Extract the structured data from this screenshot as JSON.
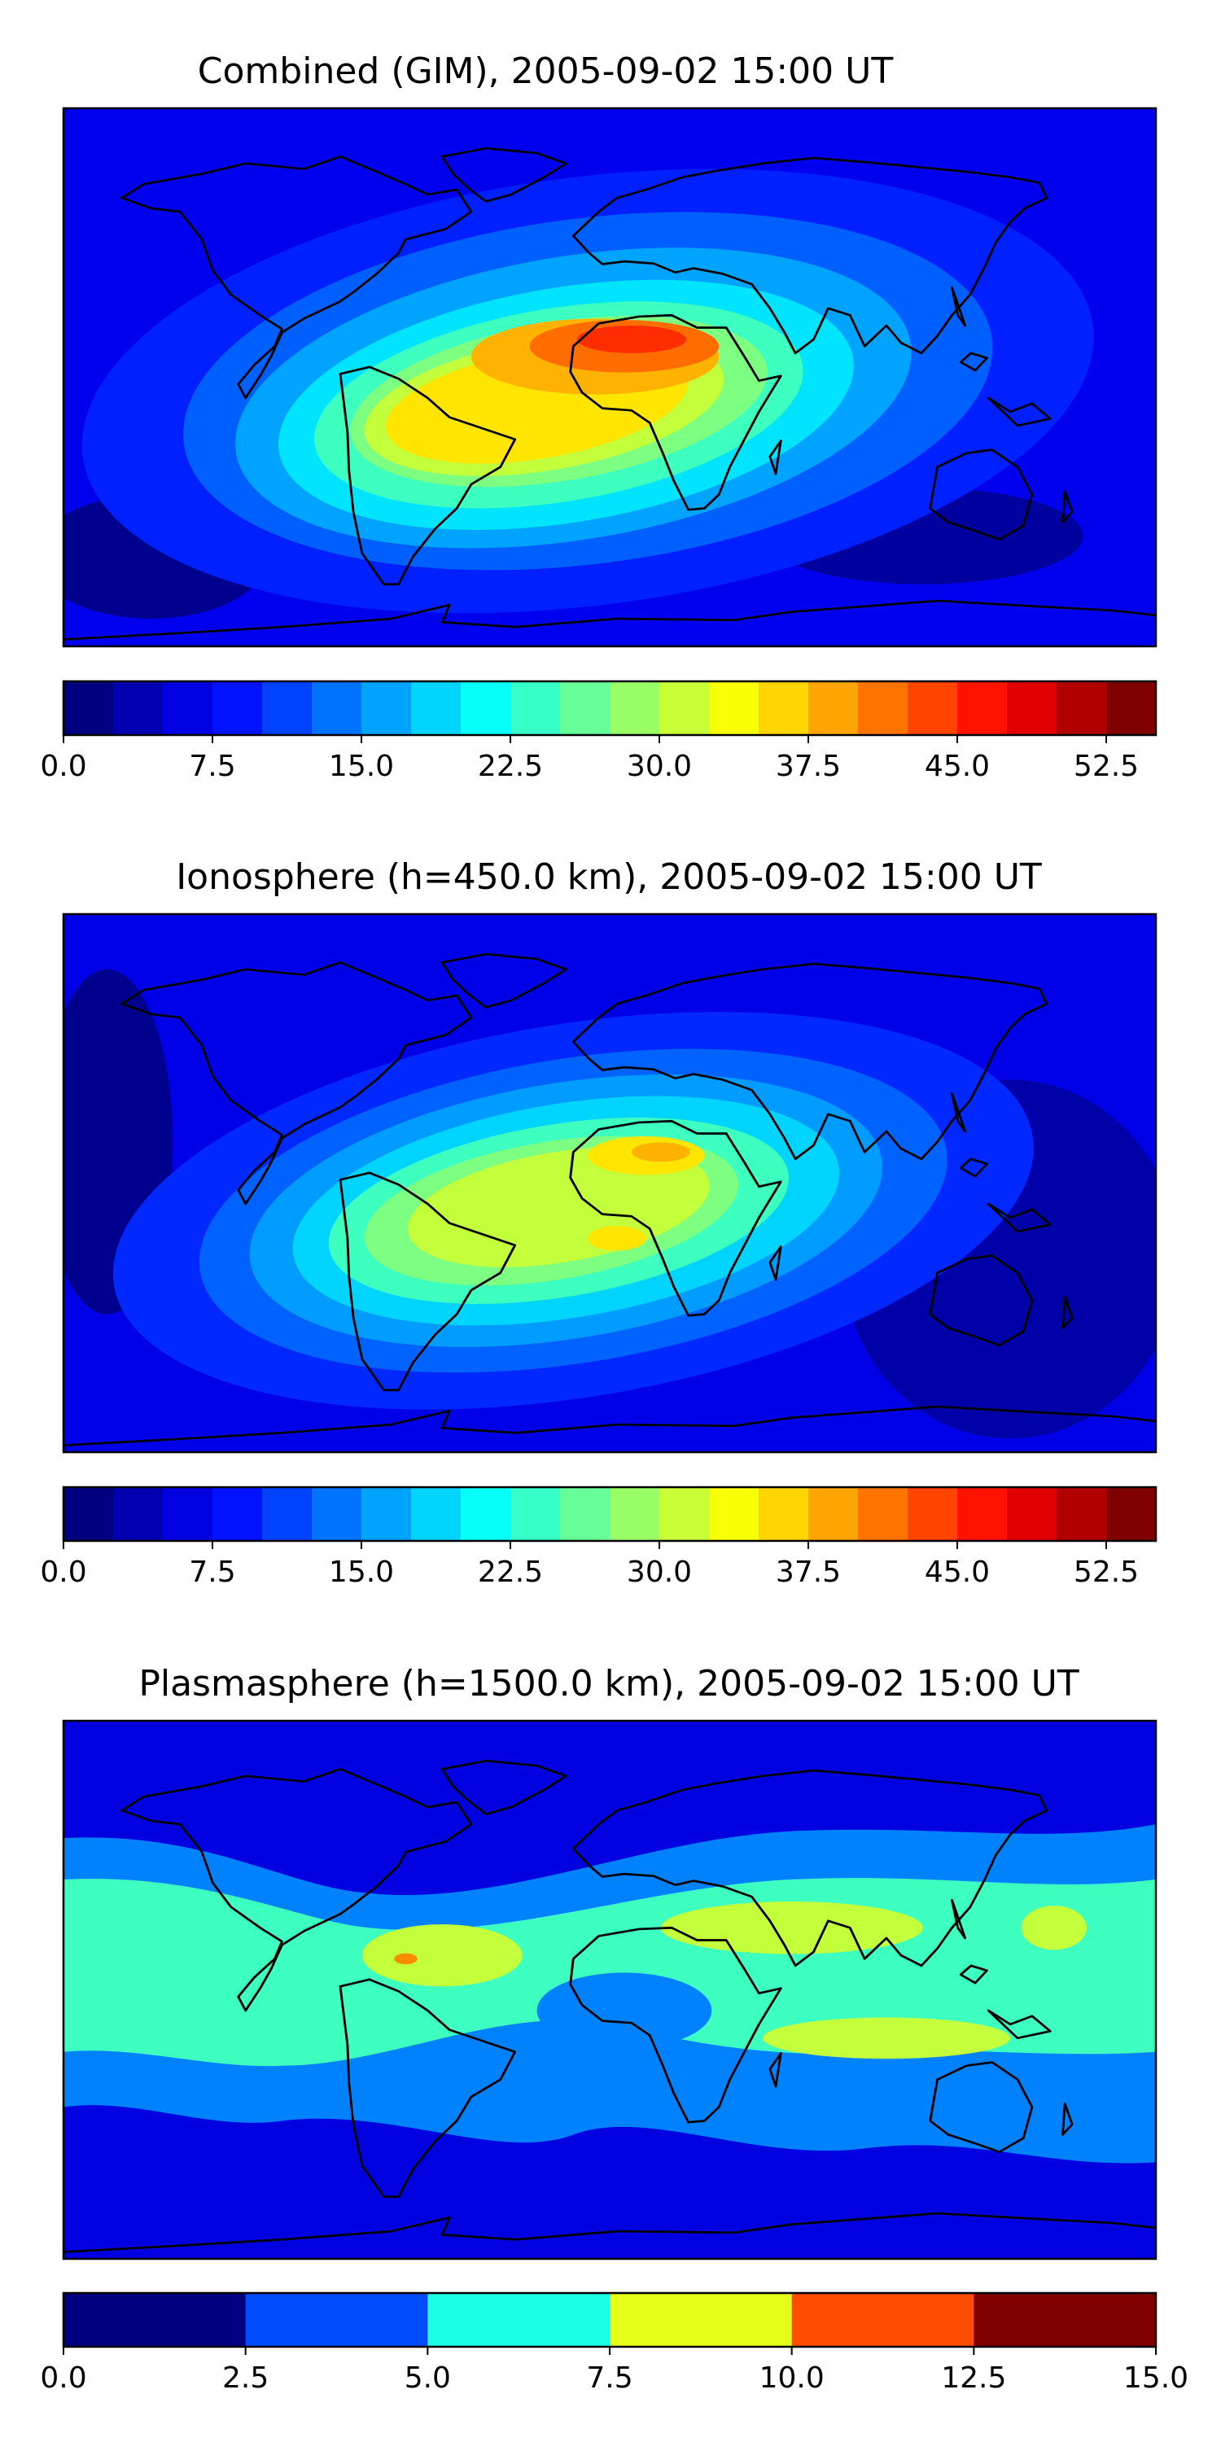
{
  "chart_data": [
    {
      "type": "heatmap",
      "title": "Combined (GIM), 2005-09-02 15:00 UT",
      "map": "world",
      "colormap": "jet",
      "colorbar": {
        "min": 0,
        "max": 55,
        "step": 2.5,
        "tick_labels": [
          "0.0",
          "7.5",
          "15.0",
          "22.5",
          "30.0",
          "37.5",
          "45.0",
          "52.5"
        ]
      },
      "features": [
        {
          "region": "background",
          "value": 6
        },
        {
          "region": "low-latitude band (Atlantic / Africa)",
          "value": 30
        },
        {
          "region": "South America",
          "value": 36
        },
        {
          "region": "West Africa (maximum)",
          "value": 48
        },
        {
          "region": "Southern ocean minimum",
          "value": 2
        }
      ]
    },
    {
      "type": "heatmap",
      "title": "Ionosphere  (h=450.0 km), 2005-09-02 15:00 UT",
      "map": "world",
      "colormap": "jet",
      "colorbar": {
        "min": 0,
        "max": 55,
        "step": 2.5,
        "tick_labels": [
          "0.0",
          "7.5",
          "15.0",
          "22.5",
          "30.0",
          "37.5",
          "45.0",
          "52.5"
        ]
      },
      "features": [
        {
          "region": "background",
          "value": 4
        },
        {
          "region": "low-latitude band (Atlantic / Africa)",
          "value": 24
        },
        {
          "region": "South America",
          "value": 30
        },
        {
          "region": "West Africa (maximum)",
          "value": 38
        },
        {
          "region": "Pacific minimum",
          "value": 1
        }
      ]
    },
    {
      "type": "heatmap",
      "title": "Plasmasphere (h=1500.0 km), 2005-09-02 15:00 UT",
      "map": "world",
      "colormap": "jet",
      "colorbar": {
        "min": 0,
        "max": 15,
        "step": 2.5,
        "tick_labels": [
          "0.0",
          "2.5",
          "5.0",
          "7.5",
          "10.0",
          "12.5",
          "15.0"
        ]
      },
      "features": [
        {
          "region": "polar caps",
          "value": 1.5
        },
        {
          "region": "mid-latitude bands",
          "value": 4
        },
        {
          "region": "equatorial belt",
          "value": 6
        },
        {
          "region": "North Africa / Asia patches",
          "value": 8.5
        },
        {
          "region": "Equatorial Atlantic peak",
          "value": 11
        }
      ]
    }
  ]
}
